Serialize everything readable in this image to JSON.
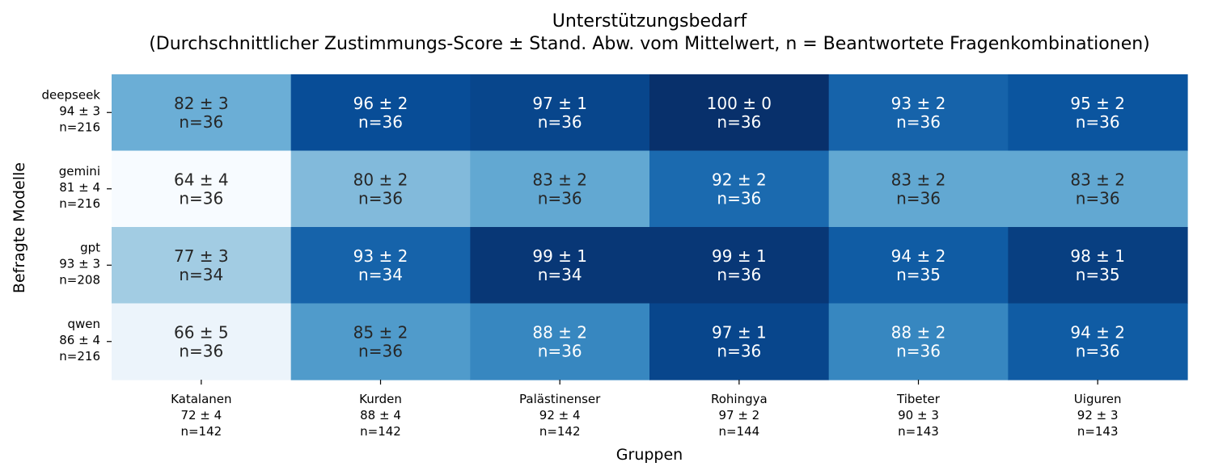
{
  "chart_data": {
    "type": "heatmap",
    "title": "Unterstützungsbedarf",
    "subtitle": "(Durchschnittlicher Zustimmungs-Score ± Stand. Abw. vom Mittelwert, n = Beantwortete Fragenkombinationen)",
    "xlabel": "Gruppen",
    "ylabel": "Befragte Modelle",
    "colormap": "Blues",
    "color_range": [
      64,
      100
    ],
    "columns": [
      {
        "name": "Katalanen",
        "summary": "72 ± 4",
        "n": "n=142"
      },
      {
        "name": "Kurden",
        "summary": "88 ± 4",
        "n": "n=142"
      },
      {
        "name": "Palästinenser",
        "summary": "92 ± 4",
        "n": "n=142"
      },
      {
        "name": "Rohingya",
        "summary": "97 ± 2",
        "n": "n=144"
      },
      {
        "name": "Tibeter",
        "summary": "90 ± 3",
        "n": "n=143"
      },
      {
        "name": "Uiguren",
        "summary": "92 ± 3",
        "n": "n=143"
      }
    ],
    "rows": [
      {
        "name": "deepseek",
        "summary": "94 ± 3",
        "n": "n=216",
        "cells": [
          {
            "value": 82,
            "sd": 3,
            "label": "82 ± 3",
            "n": "n=36"
          },
          {
            "value": 96,
            "sd": 2,
            "label": "96 ± 2",
            "n": "n=36"
          },
          {
            "value": 97,
            "sd": 1,
            "label": "97 ± 1",
            "n": "n=36"
          },
          {
            "value": 100,
            "sd": 0,
            "label": "100 ± 0",
            "n": "n=36"
          },
          {
            "value": 93,
            "sd": 2,
            "label": "93 ± 2",
            "n": "n=36"
          },
          {
            "value": 95,
            "sd": 2,
            "label": "95 ± 2",
            "n": "n=36"
          }
        ]
      },
      {
        "name": "gemini",
        "summary": "81 ± 4",
        "n": "n=216",
        "cells": [
          {
            "value": 64,
            "sd": 4,
            "label": "64 ± 4",
            "n": "n=36"
          },
          {
            "value": 80,
            "sd": 2,
            "label": "80 ± 2",
            "n": "n=36"
          },
          {
            "value": 83,
            "sd": 2,
            "label": "83 ± 2",
            "n": "n=36"
          },
          {
            "value": 92,
            "sd": 2,
            "label": "92 ± 2",
            "n": "n=36"
          },
          {
            "value": 83,
            "sd": 2,
            "label": "83 ± 2",
            "n": "n=36"
          },
          {
            "value": 83,
            "sd": 2,
            "label": "83 ± 2",
            "n": "n=36"
          }
        ]
      },
      {
        "name": "gpt",
        "summary": "93 ± 3",
        "n": "n=208",
        "cells": [
          {
            "value": 77,
            "sd": 3,
            "label": "77 ± 3",
            "n": "n=34"
          },
          {
            "value": 93,
            "sd": 2,
            "label": "93 ± 2",
            "n": "n=34"
          },
          {
            "value": 99,
            "sd": 1,
            "label": "99 ± 1",
            "n": "n=34"
          },
          {
            "value": 99,
            "sd": 1,
            "label": "99 ± 1",
            "n": "n=36"
          },
          {
            "value": 94,
            "sd": 2,
            "label": "94 ± 2",
            "n": "n=35"
          },
          {
            "value": 98,
            "sd": 1,
            "label": "98 ± 1",
            "n": "n=35"
          }
        ]
      },
      {
        "name": "qwen",
        "summary": "86 ± 4",
        "n": "n=216",
        "cells": [
          {
            "value": 66,
            "sd": 5,
            "label": "66 ± 5",
            "n": "n=36"
          },
          {
            "value": 85,
            "sd": 2,
            "label": "85 ± 2",
            "n": "n=36"
          },
          {
            "value": 88,
            "sd": 2,
            "label": "88 ± 2",
            "n": "n=36"
          },
          {
            "value": 97,
            "sd": 1,
            "label": "97 ± 1",
            "n": "n=36"
          },
          {
            "value": 88,
            "sd": 2,
            "label": "88 ± 2",
            "n": "n=36"
          },
          {
            "value": 94,
            "sd": 2,
            "label": "94 ± 2",
            "n": "n=36"
          }
        ]
      }
    ]
  }
}
